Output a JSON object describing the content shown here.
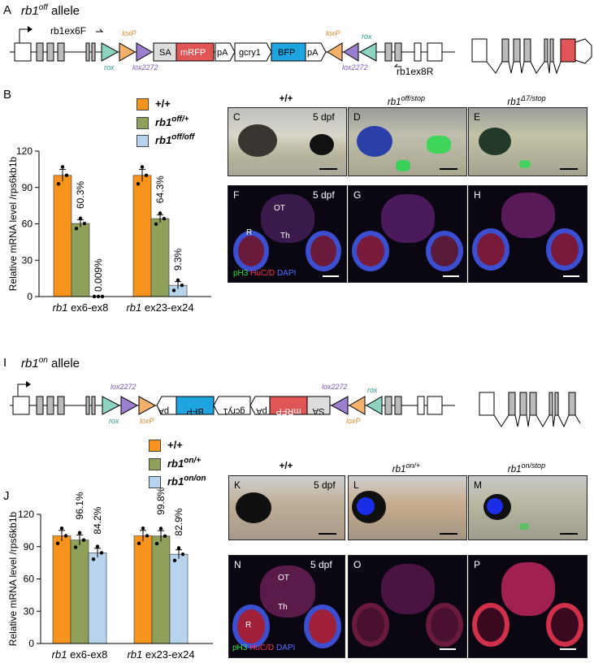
{
  "panelA": {
    "letter": "A",
    "title_gene": "rb1",
    "title_sup": "off",
    "title_rest": " allele",
    "primerF": "rb1ex6F",
    "primerR": "rb1ex8R",
    "elements": {
      "rox": "rox",
      "loxP": "loxP",
      "lox2272": "lox2272",
      "SA": "SA",
      "mRFP": "mRFP",
      "pA": "pA",
      "gcry1": "gcry1",
      "BFP": "BFP"
    }
  },
  "panelB": {
    "letter": "B",
    "legend": [
      {
        "label": "+/+",
        "sup": "",
        "color": "#f7941d"
      },
      {
        "label": "rb1",
        "sup": "off/+",
        "color": "#8fa05a"
      },
      {
        "label": "rb1",
        "sup": "off/off",
        "color": "#b7d3ee"
      }
    ],
    "ylabel": "Relative mRNA level /rps6kb1b",
    "ticks": [
      "0",
      "30",
      "60",
      "90",
      "120"
    ],
    "groups": [
      "ex6-ex8",
      "ex23-ex24"
    ],
    "group_prefix": "rb1",
    "annotations": [
      "60.3%",
      "0.009%",
      "64.3%",
      "9.3%"
    ]
  },
  "chart_data": [
    {
      "type": "bar",
      "ylabel": "Relative mRNA level /rps6kb1b",
      "ylim": [
        0,
        120
      ],
      "categories": [
        "rb1 ex6-ex8",
        "rb1 ex23-ex24"
      ],
      "series": [
        {
          "name": "+/+",
          "values": [
            100,
            100
          ]
        },
        {
          "name": "rb1 off/+",
          "values": [
            60.3,
            64.3
          ]
        },
        {
          "name": "rb1 off/off",
          "values": [
            0.009,
            9.3
          ]
        }
      ]
    },
    {
      "type": "bar",
      "ylabel": "Relative mRNA level /rps6kb1b",
      "ylim": [
        0,
        120
      ],
      "categories": [
        "rb1 ex6-ex8",
        "rb1 ex23-ex24"
      ],
      "series": [
        {
          "name": "+/+",
          "values": [
            100,
            100
          ]
        },
        {
          "name": "rb1 on/+",
          "values": [
            96.1,
            99.8
          ]
        },
        {
          "name": "rb1 on/on",
          "values": [
            84.2,
            82.9
          ]
        }
      ]
    }
  ],
  "panelsCE": {
    "heads": [
      {
        "t": "+/+",
        "s": ""
      },
      {
        "t": "rb1",
        "s": "off/stop"
      },
      {
        "t": "rb1",
        "s": "Δ7/stop"
      }
    ],
    "letters": [
      "C",
      "D",
      "E"
    ],
    "stage": "5 dpf"
  },
  "panelsFH": {
    "letters": [
      "F",
      "G",
      "H"
    ],
    "stage": "5 dpf",
    "OT": "OT",
    "R": "R",
    "Th": "Th",
    "stain1": "pH3",
    "stain2": "HuC/D",
    "stain3": "DAPI"
  },
  "panelI": {
    "letter": "I",
    "title_gene": "rb1",
    "title_sup": "on",
    "title_rest": " allele"
  },
  "panelJ": {
    "letter": "J",
    "legend": [
      {
        "label": "+/+",
        "sup": "",
        "color": "#f7941d"
      },
      {
        "label": "rb1",
        "sup": "on/+",
        "color": "#8fa05a"
      },
      {
        "label": "rb1",
        "sup": "on/on",
        "color": "#b7d3ee"
      }
    ],
    "ylabel": "Relative mRNA level /rps6kb1b",
    "ticks": [
      "0",
      "30",
      "60",
      "90",
      "120"
    ],
    "groups": [
      "ex6-ex8",
      "ex23-ex24"
    ],
    "group_prefix": "rb1",
    "annotations": [
      "96.1%",
      "84.2%",
      "99.8%",
      "82.9%"
    ]
  },
  "panelsKM": {
    "heads": [
      {
        "t": "+/+",
        "s": ""
      },
      {
        "t": "rb1",
        "s": "on/+"
      },
      {
        "t": "rb1",
        "s": "on/stop"
      }
    ],
    "letters": [
      "K",
      "L",
      "M"
    ],
    "stage": "5 dpf"
  },
  "panelsNP": {
    "letters": [
      "N",
      "O",
      "P"
    ],
    "stage": "5 dpf",
    "OT": "OT",
    "R": "R",
    "Th": "Th",
    "stain1": "pH3",
    "stain2": "HuC/D",
    "stain3": "DAPI"
  }
}
